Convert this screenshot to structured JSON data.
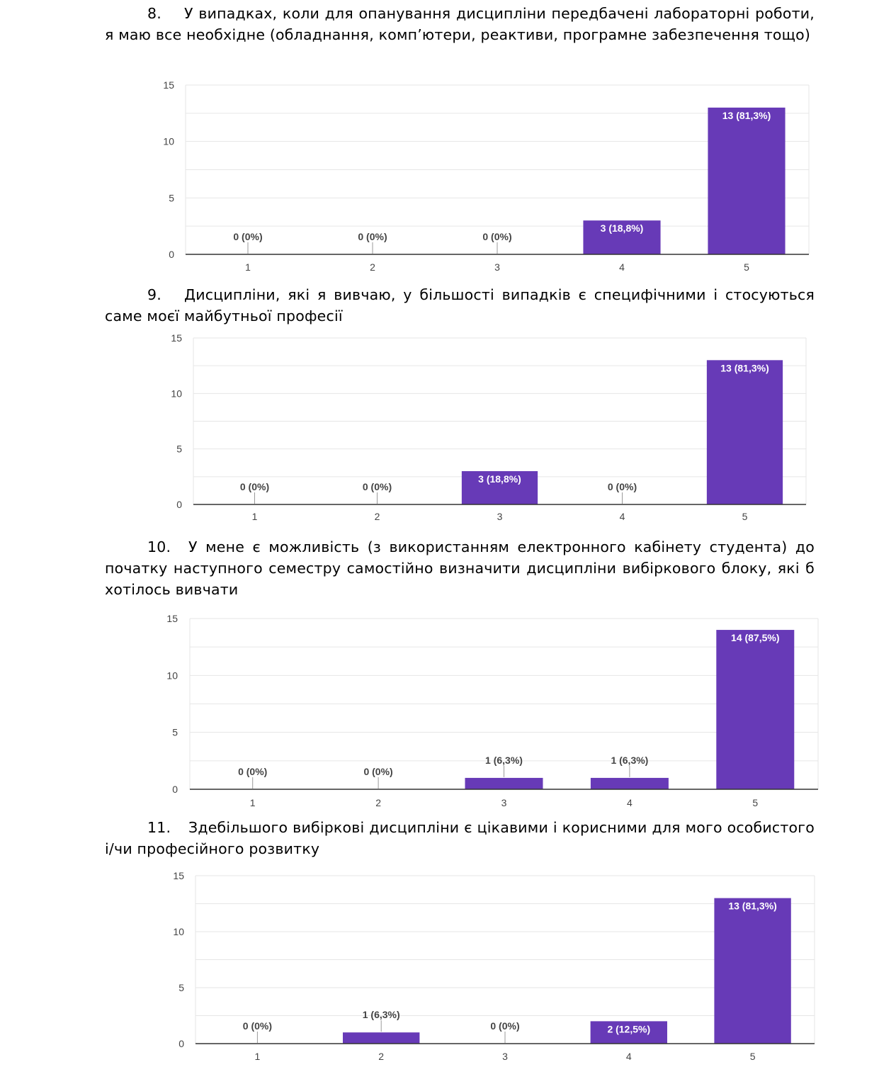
{
  "questions": [
    {
      "number": "8.",
      "text": "У випадках, коли для опанування дисципліни передбачені лабораторні роботи, я маю все необхідне (обладнання, комп’ютери, реактиви, програмне забезпечення тощо)"
    },
    {
      "number": "9.",
      "text": "Дисципліни, які я вивчаю, у більшості випадків є специфічними і стосуються саме моєї майбутньої професії"
    },
    {
      "number": "10.",
      "text": "У мене є можливість (з використанням електронного кабінету студента) до початку наступного семестру самостійно визначити дисципліни вибіркового блоку, які б хотілось вивчати"
    },
    {
      "number": "11.",
      "text": "Здебільшого вибіркові дисципліни є цікавими і корисними для мого особистого і/чи професійного розвитку"
    }
  ],
  "chart_data": [
    {
      "type": "bar",
      "title": "",
      "categories": [
        "1",
        "2",
        "3",
        "4",
        "5"
      ],
      "values": [
        0,
        0,
        0,
        3,
        13
      ],
      "labels": [
        "0 (0%)",
        "0 (0%)",
        "0 (0%)",
        "3 (18,8%)",
        "13 (81,3%)"
      ],
      "yticks": [
        "0",
        "5",
        "10",
        "15"
      ],
      "ylim": [
        0,
        15
      ],
      "xlabel": "",
      "ylabel": "",
      "bar_color": "#673ab7",
      "grid": true
    },
    {
      "type": "bar",
      "title": "",
      "categories": [
        "1",
        "2",
        "3",
        "4",
        "5"
      ],
      "values": [
        0,
        0,
        3,
        0,
        13
      ],
      "labels": [
        "0 (0%)",
        "0 (0%)",
        "3 (18,8%)",
        "0 (0%)",
        "13 (81,3%)"
      ],
      "yticks": [
        "0",
        "5",
        "10",
        "15"
      ],
      "ylim": [
        0,
        15
      ],
      "xlabel": "",
      "ylabel": "",
      "bar_color": "#673ab7",
      "grid": true
    },
    {
      "type": "bar",
      "title": "",
      "categories": [
        "1",
        "2",
        "3",
        "4",
        "5"
      ],
      "values": [
        0,
        0,
        1,
        1,
        14
      ],
      "labels": [
        "0 (0%)",
        "0 (0%)",
        "1 (6,3%)",
        "1 (6,3%)",
        "14 (87,5%)"
      ],
      "yticks": [
        "0",
        "5",
        "10",
        "15"
      ],
      "ylim": [
        0,
        15
      ],
      "xlabel": "",
      "ylabel": "",
      "bar_color": "#673ab7",
      "grid": true
    },
    {
      "type": "bar",
      "title": "",
      "categories": [
        "1",
        "2",
        "3",
        "4",
        "5"
      ],
      "values": [
        0,
        1,
        0,
        2,
        13
      ],
      "labels": [
        "0 (0%)",
        "1 (6,3%)",
        "0 (0%)",
        "2 (12,5%)",
        "13 (81,3%)"
      ],
      "yticks": [
        "0",
        "5",
        "10",
        "15"
      ],
      "ylim": [
        0,
        15
      ],
      "xlabel": "",
      "ylabel": "",
      "bar_color": "#673ab7",
      "grid": true
    }
  ]
}
